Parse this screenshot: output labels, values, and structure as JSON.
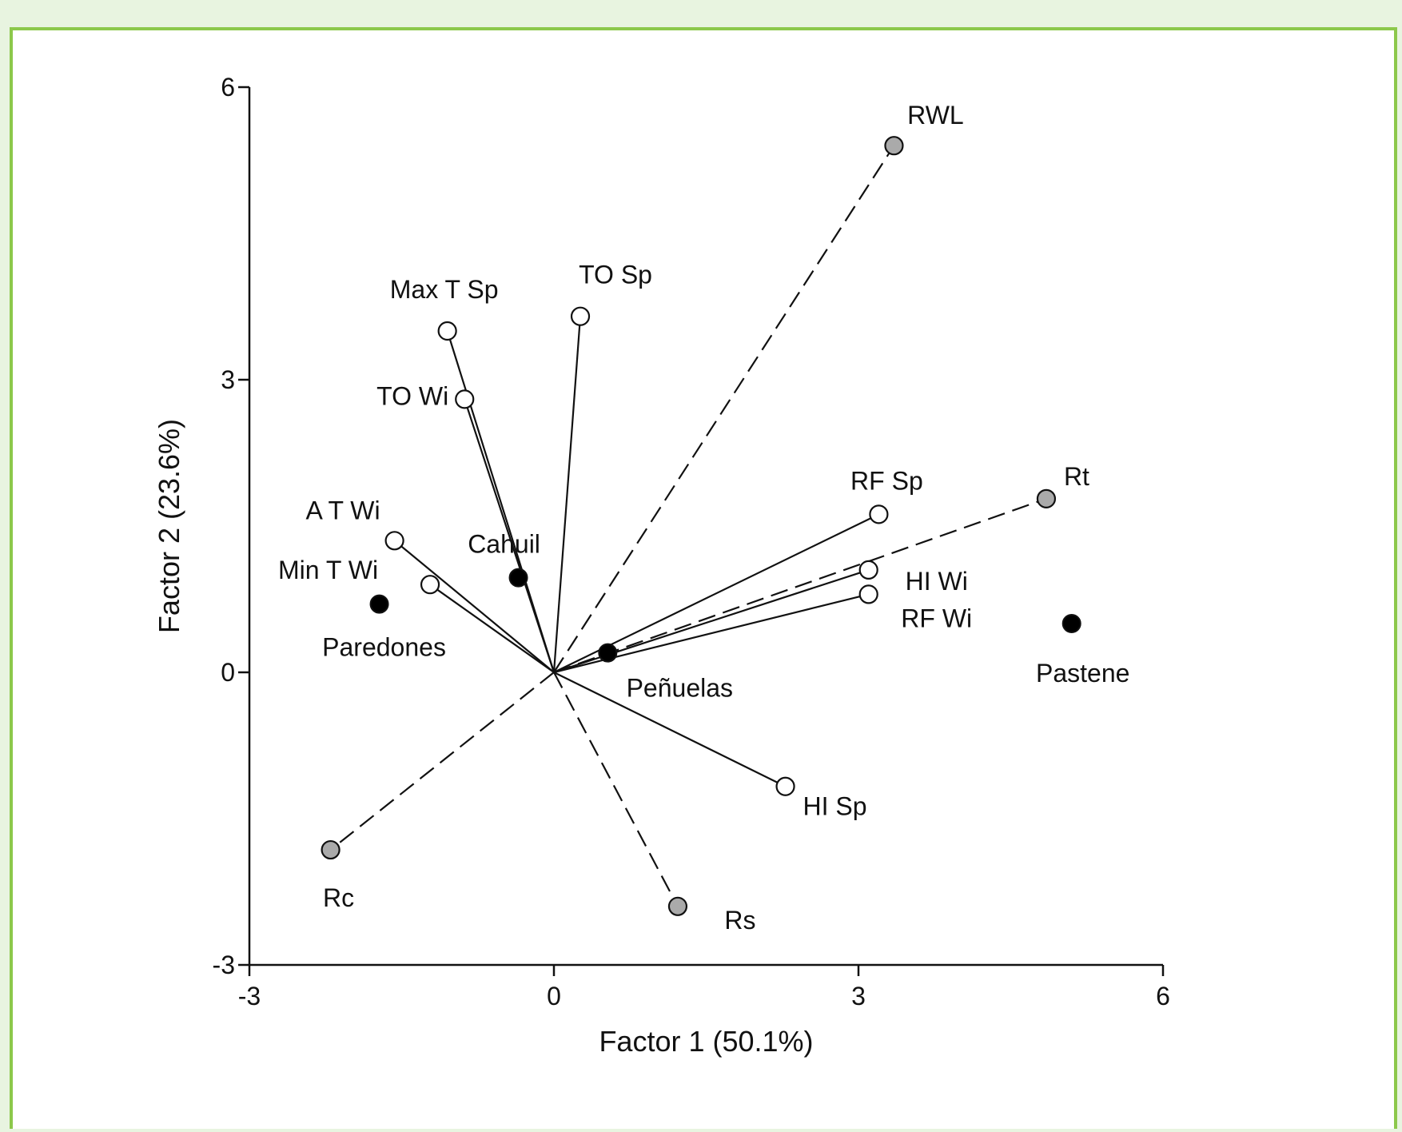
{
  "chart_data": {
    "type": "scatter",
    "subtype": "biplot",
    "xlabel": "Factor 1 (50.1%)",
    "ylabel": "Factor 2 (23.6%)",
    "xlim": [
      -3,
      6
    ],
    "ylim": [
      -3,
      6
    ],
    "xticks": [
      "-3",
      "0",
      "3",
      "6"
    ],
    "yticks": [
      "-3",
      "0",
      "3",
      "6"
    ],
    "grid": false,
    "legend": "none",
    "colors": {
      "climate": "#ffffff",
      "growth": "#aaaaaa",
      "site": "#000000",
      "stroke": "#111111"
    },
    "variables": [
      {
        "label": "RWL",
        "x": 3.35,
        "y": 5.4,
        "group": "growth",
        "line": "dashed"
      },
      {
        "label": "TO Sp",
        "x": 0.26,
        "y": 3.65,
        "group": "climate",
        "line": "solid"
      },
      {
        "label": "Max T Sp",
        "x": -1.05,
        "y": 3.5,
        "group": "climate",
        "line": "solid"
      },
      {
        "label": "TO Wi",
        "x": -0.88,
        "y": 2.8,
        "group": "climate",
        "line": "solid"
      },
      {
        "label": "A T Wi",
        "x": -1.57,
        "y": 1.35,
        "group": "climate",
        "line": "solid"
      },
      {
        "label": "Min T Wi",
        "x": -1.22,
        "y": 0.9,
        "group": "climate",
        "line": "solid"
      },
      {
        "label": "RF Sp",
        "x": 3.2,
        "y": 1.62,
        "group": "climate",
        "line": "solid"
      },
      {
        "label": "Rt",
        "x": 4.85,
        "y": 1.78,
        "group": "growth",
        "line": "dashed"
      },
      {
        "label": "HI Wi",
        "x": 3.1,
        "y": 1.05,
        "group": "climate",
        "line": "solid"
      },
      {
        "label": "RF Wi",
        "x": 3.1,
        "y": 0.8,
        "group": "climate",
        "line": "solid"
      },
      {
        "label": "HI Sp",
        "x": 2.28,
        "y": -1.17,
        "group": "climate",
        "line": "solid"
      },
      {
        "label": "Rs",
        "x": 1.22,
        "y": -2.4,
        "group": "growth",
        "line": "dashed"
      },
      {
        "label": "Rc",
        "x": -2.2,
        "y": -1.82,
        "group": "growth",
        "line": "dashed"
      }
    ],
    "sites": [
      {
        "label": "Cahuil",
        "x": -0.35,
        "y": 0.97
      },
      {
        "label": "Paredones",
        "x": -1.72,
        "y": 0.7
      },
      {
        "label": "Peñuelas",
        "x": 0.53,
        "y": 0.2
      },
      {
        "label": "Pastene",
        "x": 5.1,
        "y": 0.5
      }
    ]
  }
}
